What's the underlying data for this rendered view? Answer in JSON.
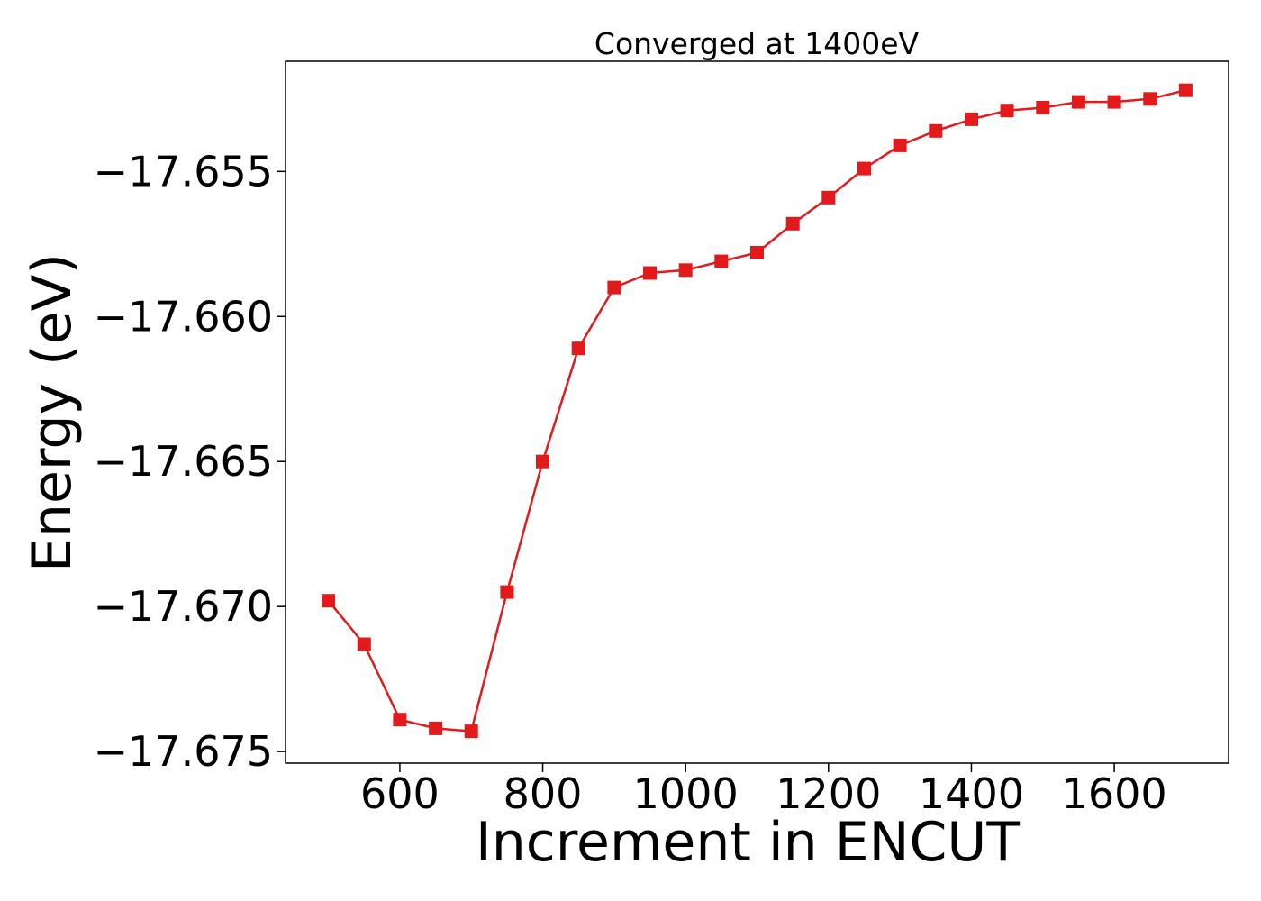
{
  "chart_data": {
    "type": "line",
    "title": "Converged at 1400eV",
    "xlabel": "Increment in ENCUT",
    "ylabel": "Energy (eV)",
    "xlim": [
      440,
      1760
    ],
    "ylim": [
      -17.6754,
      -17.6512
    ],
    "xticks": [
      600,
      800,
      1000,
      1200,
      1400,
      1600
    ],
    "xtick_labels": [
      "600",
      "800",
      "1000",
      "1200",
      "1400",
      "1600"
    ],
    "yticks": [
      -17.655,
      -17.66,
      -17.665,
      -17.67,
      -17.675
    ],
    "ytick_labels": [
      "−17.655",
      "−17.660",
      "−17.665",
      "−17.670",
      "−17.675"
    ],
    "grid": false,
    "series": [
      {
        "color": "#e31a1c",
        "marker": "square",
        "x": [
          500,
          550,
          600,
          650,
          700,
          750,
          800,
          850,
          900,
          950,
          1000,
          1050,
          1100,
          1150,
          1200,
          1250,
          1300,
          1350,
          1400,
          1450,
          1500,
          1550,
          1600,
          1650,
          1700
        ],
        "y": [
          -17.6698,
          -17.6713,
          -17.6739,
          -17.6742,
          -17.6743,
          -17.6695,
          -17.665,
          -17.6611,
          -17.659,
          -17.6585,
          -17.6584,
          -17.6581,
          -17.6578,
          -17.6568,
          -17.6559,
          -17.6549,
          -17.6541,
          -17.6536,
          -17.6532,
          -17.6529,
          -17.6528,
          -17.6526,
          -17.6526,
          -17.6525,
          -17.6522
        ]
      }
    ]
  }
}
